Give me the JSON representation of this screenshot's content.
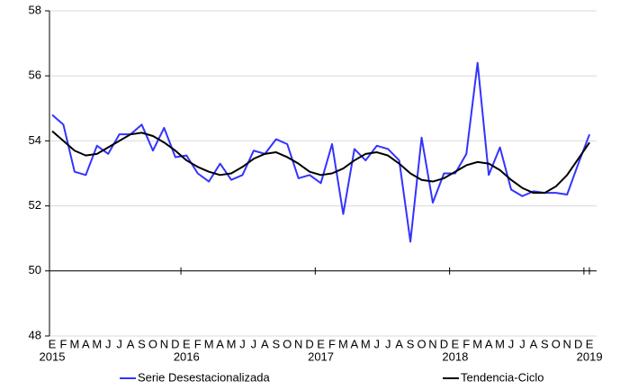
{
  "chart_data": {
    "type": "line",
    "categories": [
      "E",
      "F",
      "M",
      "A",
      "M",
      "J",
      "J",
      "A",
      "S",
      "O",
      "N",
      "D",
      "E",
      "F",
      "M",
      "A",
      "M",
      "J",
      "J",
      "A",
      "S",
      "O",
      "N",
      "D",
      "E",
      "F",
      "M",
      "A",
      "M",
      "J",
      "J",
      "A",
      "S",
      "O",
      "N",
      "D",
      "E",
      "F",
      "M",
      "A",
      "M",
      "J",
      "J",
      "A",
      "S",
      "O",
      "N",
      "D",
      "E"
    ],
    "year_labels": [
      "2015",
      "2016",
      "2017",
      "2018",
      "2019"
    ],
    "series": [
      {
        "name": "Serie Desestacionalizada",
        "color": "#3333ff",
        "values": [
          54.8,
          54.5,
          53.05,
          52.95,
          53.85,
          53.6,
          54.2,
          54.2,
          54.5,
          53.7,
          54.4,
          53.5,
          53.55,
          53.0,
          52.75,
          53.3,
          52.8,
          52.95,
          53.7,
          53.6,
          54.05,
          53.9,
          52.85,
          52.95,
          52.7,
          53.9,
          51.75,
          53.75,
          53.4,
          53.85,
          53.75,
          53.4,
          50.9,
          54.1,
          52.1,
          53.0,
          53.0,
          53.6,
          56.4,
          52.95,
          53.8,
          52.5,
          52.3,
          52.45,
          52.4,
          52.4,
          52.35,
          53.3,
          54.2
        ]
      },
      {
        "name": "Tendencia-Ciclo",
        "color": "#000000",
        "values": [
          54.3,
          54.0,
          53.7,
          53.55,
          53.6,
          53.8,
          54.0,
          54.2,
          54.25,
          54.15,
          53.95,
          53.7,
          53.4,
          53.2,
          53.05,
          52.95,
          53.0,
          53.2,
          53.45,
          53.6,
          53.65,
          53.5,
          53.3,
          53.05,
          52.95,
          53.0,
          53.15,
          53.4,
          53.6,
          53.65,
          53.55,
          53.3,
          53.0,
          52.8,
          52.75,
          52.85,
          53.05,
          53.25,
          53.35,
          53.3,
          53.1,
          52.8,
          52.55,
          52.4,
          52.4,
          52.6,
          52.95,
          53.45,
          53.95
        ]
      }
    ],
    "ylim": [
      48,
      58
    ],
    "yticks": [
      48,
      50,
      52,
      54,
      56,
      58
    ],
    "xaxis_at": 50,
    "grid": true,
    "legend": "bottom"
  }
}
